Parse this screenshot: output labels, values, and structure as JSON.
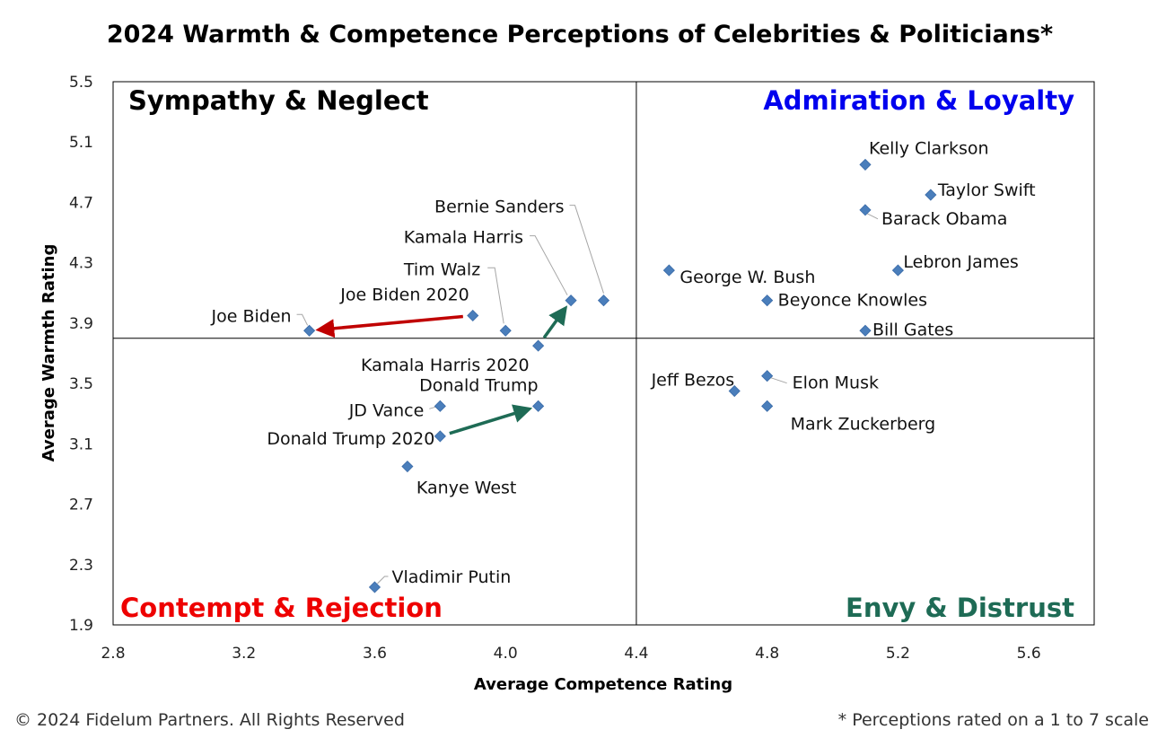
{
  "chart_data": {
    "type": "scatter",
    "title": "2024 Warmth & Competence Perceptions of Celebrities & Politicians*",
    "xlabel": "Average Competence Rating",
    "ylabel": "Average Warmth Rating",
    "xlim": [
      2.8,
      5.8
    ],
    "ylim": [
      1.9,
      5.5
    ],
    "xticks": [
      "2.8",
      "3.2",
      "3.6",
      "4.0",
      "4.4",
      "4.8",
      "5.2",
      "5.6"
    ],
    "yticks": [
      "1.9",
      "2.3",
      "2.7",
      "3.1",
      "3.5",
      "3.9",
      "4.3",
      "4.7",
      "5.1",
      "5.5"
    ],
    "xtick_values": [
      2.8,
      3.2,
      3.6,
      4.0,
      4.4,
      4.8,
      5.2,
      5.6
    ],
    "ytick_values": [
      1.9,
      2.3,
      2.7,
      3.1,
      3.5,
      3.9,
      4.3,
      4.7,
      5.1,
      5.5
    ],
    "divider": {
      "x": 4.4,
      "y": 3.8
    },
    "quadrants": [
      {
        "name": "top-left",
        "label": "Sympathy & Neglect",
        "color": "#000000"
      },
      {
        "name": "top-right",
        "label": "Admiration & Loyalty",
        "color": "#0000EE"
      },
      {
        "name": "bottom-left",
        "label": "Contempt & Rejection",
        "color": "#EE0000"
      },
      {
        "name": "bottom-right",
        "label": "Envy & Distrust",
        "color": "#1E6B55"
      }
    ],
    "marker_color": "#4A7EBB",
    "points": [
      {
        "label": "Kelly Clarkson",
        "x": 5.1,
        "y": 4.95
      },
      {
        "label": "Taylor Swift",
        "x": 5.3,
        "y": 4.75
      },
      {
        "label": "Barack Obama",
        "x": 5.1,
        "y": 4.65
      },
      {
        "label": "Lebron James",
        "x": 5.2,
        "y": 4.25
      },
      {
        "label": "George W. Bush",
        "x": 4.5,
        "y": 4.25
      },
      {
        "label": "Beyonce Knowles",
        "x": 4.8,
        "y": 4.05
      },
      {
        "label": "Bill Gates",
        "x": 5.1,
        "y": 3.85
      },
      {
        "label": "Elon Musk",
        "x": 4.8,
        "y": 3.55
      },
      {
        "label": "Jeff Bezos",
        "x": 4.7,
        "y": 3.45
      },
      {
        "label": "Mark Zuckerberg",
        "x": 4.8,
        "y": 3.35
      },
      {
        "label": "Bernie Sanders",
        "x": 4.3,
        "y": 4.05
      },
      {
        "label": "Kamala Harris",
        "x": 4.2,
        "y": 4.05
      },
      {
        "label": "Tim Walz",
        "x": 4.0,
        "y": 3.85
      },
      {
        "label": "Joe Biden 2020",
        "x": 3.9,
        "y": 3.95
      },
      {
        "label": "Joe Biden",
        "x": 3.4,
        "y": 3.85
      },
      {
        "label": "Kamala Harris 2020",
        "x": 4.1,
        "y": 3.75
      },
      {
        "label": "Donald Trump",
        "x": 4.1,
        "y": 3.35
      },
      {
        "label": "JD Vance",
        "x": 3.8,
        "y": 3.35
      },
      {
        "label": "Donald Trump 2020",
        "x": 3.8,
        "y": 3.15
      },
      {
        "label": "Kanye West",
        "x": 3.7,
        "y": 2.95
      },
      {
        "label": "Vladimir Putin",
        "x": 3.6,
        "y": 2.15
      }
    ],
    "arrows": [
      {
        "from": "Joe Biden 2020",
        "to": "Joe Biden",
        "color": "#C00000"
      },
      {
        "from": "Kamala Harris 2020",
        "to": "Kamala Harris",
        "color": "#1E6B55"
      },
      {
        "from": "Donald Trump 2020",
        "to": "Donald Trump",
        "color": "#1E6B55"
      }
    ],
    "legend": "none",
    "grid": false
  },
  "footer": {
    "copyright": "© 2024 Fidelum Partners. All Rights Reserved",
    "note": "* Perceptions rated on a 1 to 7 scale"
  }
}
